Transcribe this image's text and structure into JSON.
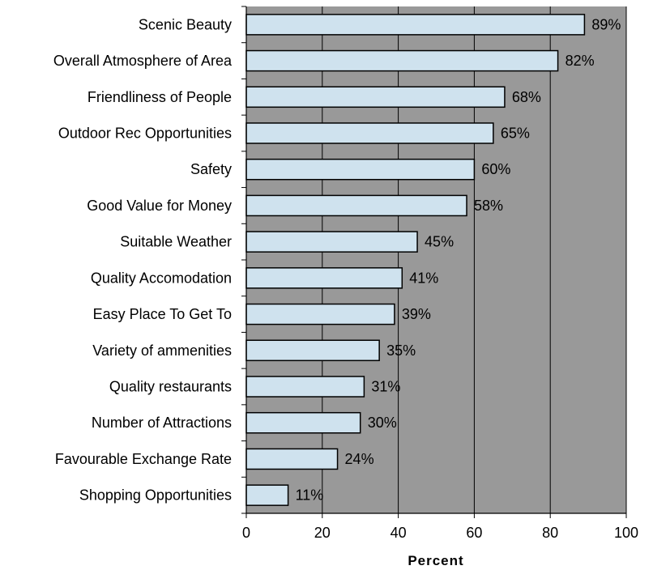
{
  "chart_data": {
    "type": "bar",
    "orientation": "horizontal",
    "categories": [
      "Scenic Beauty",
      "Overall Atmosphere of Area",
      "Friendliness of People",
      "Outdoor Rec Opportunities",
      "Safety",
      "Good Value for Money",
      "Suitable Weather",
      "Quality Accomodation",
      "Easy Place To Get To",
      "Variety of ammenities",
      "Quality restaurants",
      "Number of Attractions",
      "Favourable Exchange Rate",
      "Shopping Opportunities"
    ],
    "values": [
      89,
      82,
      68,
      65,
      60,
      58,
      45,
      41,
      39,
      35,
      31,
      30,
      24,
      11
    ],
    "value_labels": [
      "89%",
      "82%",
      "68%",
      "65%",
      "60%",
      "58%",
      "45%",
      "41%",
      "39%",
      "35%",
      "31%",
      "30%",
      "24%",
      "11%"
    ],
    "xlabel": "Percent",
    "xlim": [
      0,
      100
    ],
    "x_ticks": [
      0,
      20,
      40,
      60,
      80,
      100
    ],
    "x_tick_labels": [
      "0",
      "20",
      "40",
      "60",
      "80",
      "100"
    ],
    "grid": true,
    "legend": "none",
    "colors": {
      "bar_fill": "#cfe2ee",
      "bar_stroke": "#000000",
      "plot_bg": "#999999",
      "gridline": "#000000"
    }
  }
}
